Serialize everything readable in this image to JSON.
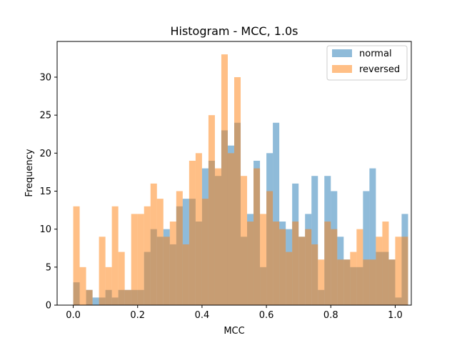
{
  "chart_data": {
    "type": "bar",
    "title": "Histogram - MCC, 1.0s",
    "xlabel": "MCC",
    "ylabel": "Frequency",
    "xlim": [
      -0.05,
      1.05
    ],
    "ylim": [
      0,
      34.7
    ],
    "x_ticks": [
      "0.0",
      "0.2",
      "0.4",
      "0.6",
      "0.8",
      "1.0"
    ],
    "y_ticks": [
      "0",
      "5",
      "10",
      "15",
      "20",
      "25",
      "30"
    ],
    "grid": false,
    "legend_position": "top-right",
    "bin_edges_start": 0.0,
    "bin_width": 0.02,
    "series": [
      {
        "name": "normal",
        "color": "#1f77b4",
        "values": [
          3,
          0,
          2,
          1,
          1,
          2,
          1,
          2,
          2,
          2,
          2,
          7,
          10,
          9,
          10,
          8,
          13,
          14,
          14,
          11,
          18,
          19,
          17,
          23,
          21,
          24,
          9,
          12,
          19,
          5,
          20,
          24,
          11,
          10,
          16,
          9,
          12,
          17,
          2,
          17,
          15,
          9,
          6,
          5,
          5,
          15,
          18,
          7,
          7,
          6,
          1,
          12
        ]
      },
      {
        "name": "reversed",
        "color": "#ff7f0e",
        "values": [
          13,
          5,
          2,
          0,
          9,
          5,
          13,
          7,
          2,
          12,
          12,
          13,
          16,
          14,
          9,
          11,
          15,
          8,
          19,
          20,
          14,
          25,
          18,
          33,
          20,
          30,
          17,
          11,
          18,
          12,
          15,
          11,
          10,
          7,
          11,
          9,
          10,
          8,
          6,
          11,
          10,
          6,
          6,
          7,
          10,
          6,
          6,
          9,
          11,
          6,
          9,
          9
        ]
      }
    ]
  }
}
